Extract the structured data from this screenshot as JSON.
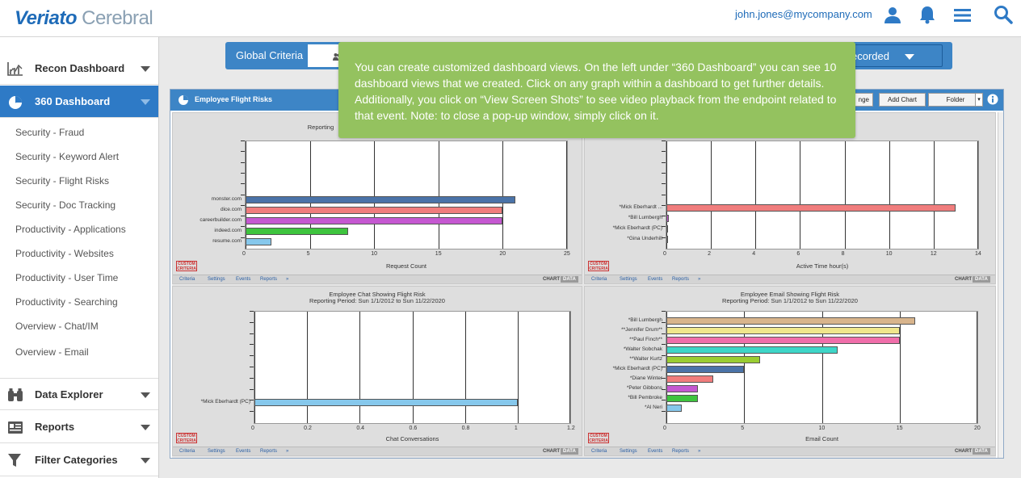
{
  "app": {
    "logo_bold": "Veriato",
    "logo_light": " Cerebral",
    "user_email": "john.jones@mycompany.com"
  },
  "icons": {
    "user": "user-icon",
    "bell": "bell-icon",
    "menu": "menu-icon",
    "search": "search-icon"
  },
  "colors": {
    "accent": "#3d85c6",
    "tooltip": "#94c25f"
  },
  "sidebar": {
    "recon": "Recon Dashboard",
    "dash360": "360 Dashboard",
    "items": [
      "Security - Fraud",
      "Security - Keyword Alert",
      "Security - Flight Risks",
      "Security - Doc Tracking",
      "Productivity - Applications",
      "Productivity - Websites",
      "Productivity - User Time",
      "Productivity - Searching",
      "Overview - Chat/IM",
      "Overview - Email"
    ],
    "data_explorer": "Data Explorer",
    "reports": "Reports",
    "filter": "Filter Categories"
  },
  "criteria": {
    "label": "Global Criteria",
    "recorded": "ecorded"
  },
  "dashboard": {
    "title": "Employee Flight Risks",
    "btn_partial": "nge",
    "btn_add_chart": "Add Chart",
    "btn_folder": "Folder"
  },
  "footer": {
    "criteria": "Criteria",
    "settings": "Settings",
    "events": "Events",
    "reports": "Reports",
    "more": "»",
    "chart": "CHART",
    "data": "DATA",
    "custom_line1": "CUSTOM",
    "custom_line2": "CRITERIA"
  },
  "tooltip": {
    "text": "You can create customized dashboard views. On the left under “360 Dashboard” you can see 10 dashboard views that we created. Click on any graph within a dashboard to get further details. Additionally, you click on “View Screen Shots” to see video playback from the endpoint related to that event. Note: to close a pop-up window, simply click on it."
  },
  "chart_data": [
    {
      "type": "bar",
      "orientation": "horizontal",
      "title": "",
      "subtitle": "Reporting",
      "categories": [
        "monster.com",
        "dice.com",
        "careerbuilder.com",
        "indeed.com",
        "resume.com"
      ],
      "values": [
        21,
        20,
        20,
        8,
        2
      ],
      "colors": [
        "#4a73a8",
        "#f07d7d",
        "#c558d1",
        "#3ec43e",
        "#86c8ec"
      ],
      "xlabel": "Request Count",
      "xlim": [
        0,
        25
      ],
      "xticks": [
        0,
        5,
        10,
        15,
        20,
        25
      ]
    },
    {
      "type": "bar",
      "orientation": "horizontal",
      "title": "",
      "subtitle": "",
      "categories": [
        "*Mick Eberhardt ...",
        "*Bill Lumbergh",
        "*Mick Eberhardt (PC)",
        "*Gina Underhill"
      ],
      "values": [
        13,
        0.1,
        0.05,
        0.02
      ],
      "colors": [
        "#f07d7d",
        "#c558d1",
        "#3ec43e",
        "#86c8ec"
      ],
      "xlabel": "Active Time hour(s)",
      "xlim": [
        0,
        14
      ],
      "xticks": [
        0,
        2,
        4,
        6,
        8,
        10,
        12,
        14
      ]
    },
    {
      "type": "bar",
      "orientation": "horizontal",
      "title": "Employee Chat Showing Flight Risk",
      "subtitle": "Reporting Period: Sun 1/1/2012 to Sun 11/22/2020",
      "categories": [
        "*Mick Eberhardt (PC)"
      ],
      "values": [
        1
      ],
      "colors": [
        "#86c8ec"
      ],
      "xlabel": "Chat Conversations",
      "xlim": [
        0,
        1.2
      ],
      "xticks": [
        0,
        0.2,
        0.4,
        0.6,
        0.8,
        1,
        1.2
      ]
    },
    {
      "type": "bar",
      "orientation": "horizontal",
      "title": "Employee Email Showing Flight Risk",
      "subtitle": "Reporting Period: Sun 1/1/2012 to Sun 11/22/2020",
      "categories": [
        "*Bill Lumbergh",
        "**Jennifer Drum**",
        "**Paul Finch**",
        "*Walter Sobchak",
        "**Walter Kurtz",
        "*Mick Eberhardt (PC)",
        "*Diane Winter",
        "*Peter Gibbons",
        "*Bill Pembroke",
        "*Al Neri"
      ],
      "values": [
        16,
        15,
        15,
        11,
        6,
        5,
        3,
        2,
        2,
        1
      ],
      "colors": [
        "#d8b48c",
        "#f0e68c",
        "#f06eaa",
        "#3ed6c8",
        "#9acd32",
        "#4a73a8",
        "#f07d7d",
        "#c558d1",
        "#3ec43e",
        "#86c8ec"
      ],
      "xlabel": "Email Count",
      "xlim": [
        0,
        20
      ],
      "xticks": [
        0,
        5,
        10,
        15,
        20
      ]
    }
  ]
}
